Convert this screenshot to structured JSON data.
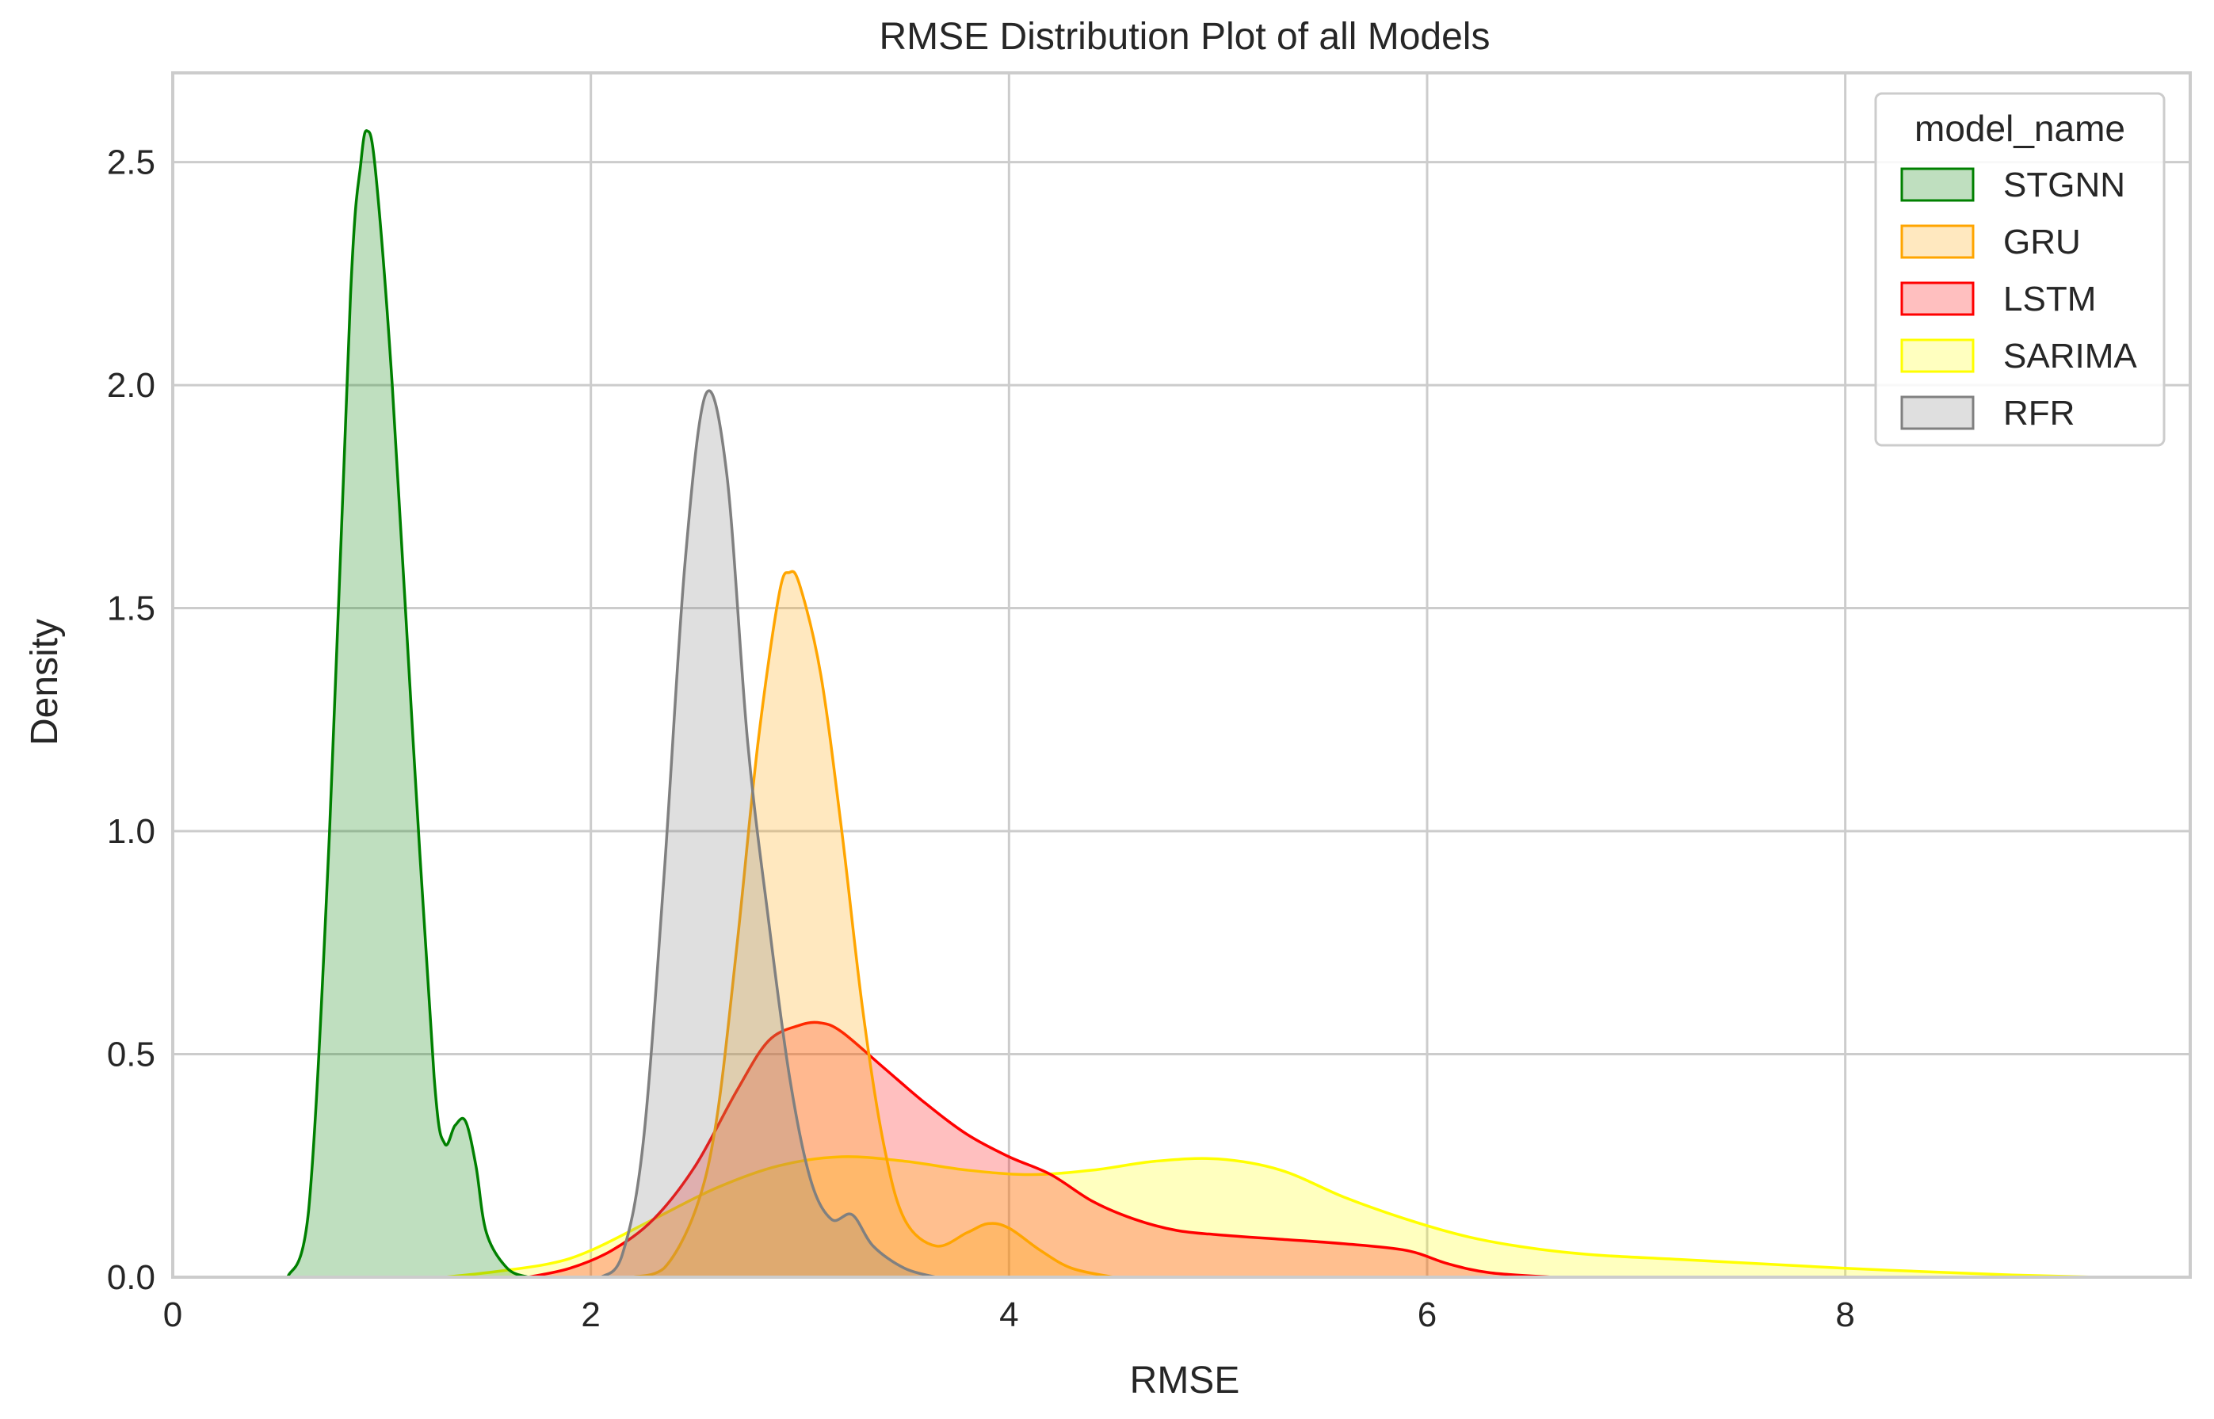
{
  "chart_data": {
    "type": "area",
    "title": "RMSE Distribution Plot of all Models",
    "xlabel": "RMSE",
    "ylabel": "Density",
    "xlim": [
      0,
      9.65
    ],
    "ylim": [
      0,
      2.7
    ],
    "xticks": [
      0,
      2,
      4,
      6,
      8
    ],
    "xtick_labels": [
      "0",
      "2",
      "4",
      "6",
      "8"
    ],
    "yticks": [
      0.0,
      0.5,
      1.0,
      1.5,
      2.0,
      2.5
    ],
    "ytick_labels": [
      "0.0",
      "0.5",
      "1.0",
      "1.5",
      "2.0",
      "2.5"
    ],
    "grid": true,
    "legend": {
      "title": "model_name",
      "placement": "top-right"
    },
    "series": [
      {
        "name": "SARIMA",
        "color": "#ffff00",
        "points": [
          [
            1.3,
            0
          ],
          [
            1.5,
            0.01
          ],
          [
            1.8,
            0.03
          ],
          [
            2.0,
            0.06
          ],
          [
            2.3,
            0.13
          ],
          [
            2.6,
            0.2
          ],
          [
            2.9,
            0.25
          ],
          [
            3.2,
            0.27
          ],
          [
            3.5,
            0.26
          ],
          [
            3.8,
            0.24
          ],
          [
            4.1,
            0.23
          ],
          [
            4.4,
            0.24
          ],
          [
            4.7,
            0.26
          ],
          [
            5.0,
            0.265
          ],
          [
            5.3,
            0.24
          ],
          [
            5.6,
            0.18
          ],
          [
            5.9,
            0.13
          ],
          [
            6.2,
            0.09
          ],
          [
            6.5,
            0.065
          ],
          [
            6.8,
            0.05
          ],
          [
            7.2,
            0.04
          ],
          [
            7.6,
            0.03
          ],
          [
            8.0,
            0.02
          ],
          [
            8.4,
            0.012
          ],
          [
            8.8,
            0.005
          ],
          [
            9.2,
            0.0
          ]
        ]
      },
      {
        "name": "LSTM",
        "color": "#ff0000",
        "points": [
          [
            1.7,
            0
          ],
          [
            1.9,
            0.02
          ],
          [
            2.1,
            0.06
          ],
          [
            2.3,
            0.13
          ],
          [
            2.5,
            0.25
          ],
          [
            2.7,
            0.42
          ],
          [
            2.85,
            0.53
          ],
          [
            3.0,
            0.565
          ],
          [
            3.1,
            0.57
          ],
          [
            3.2,
            0.55
          ],
          [
            3.4,
            0.47
          ],
          [
            3.6,
            0.39
          ],
          [
            3.8,
            0.32
          ],
          [
            4.0,
            0.27
          ],
          [
            4.2,
            0.23
          ],
          [
            4.4,
            0.17
          ],
          [
            4.6,
            0.13
          ],
          [
            4.8,
            0.105
          ],
          [
            5.0,
            0.095
          ],
          [
            5.3,
            0.085
          ],
          [
            5.6,
            0.075
          ],
          [
            5.9,
            0.06
          ],
          [
            6.1,
            0.03
          ],
          [
            6.3,
            0.01
          ],
          [
            6.6,
            0.0
          ]
        ]
      },
      {
        "name": "GRU",
        "color": "#ffa500",
        "points": [
          [
            2.2,
            0
          ],
          [
            2.35,
            0.02
          ],
          [
            2.5,
            0.15
          ],
          [
            2.6,
            0.35
          ],
          [
            2.7,
            0.75
          ],
          [
            2.8,
            1.2
          ],
          [
            2.9,
            1.53
          ],
          [
            2.95,
            1.58
          ],
          [
            3.0,
            1.55
          ],
          [
            3.1,
            1.35
          ],
          [
            3.2,
            1.0
          ],
          [
            3.3,
            0.6
          ],
          [
            3.4,
            0.3
          ],
          [
            3.5,
            0.13
          ],
          [
            3.65,
            0.07
          ],
          [
            3.8,
            0.1
          ],
          [
            3.9,
            0.12
          ],
          [
            4.0,
            0.11
          ],
          [
            4.15,
            0.06
          ],
          [
            4.3,
            0.02
          ],
          [
            4.5,
            0.0
          ]
        ]
      },
      {
        "name": "RFR",
        "color": "#808080",
        "points": [
          [
            2.05,
            0
          ],
          [
            2.15,
            0.05
          ],
          [
            2.25,
            0.3
          ],
          [
            2.35,
            0.9
          ],
          [
            2.45,
            1.6
          ],
          [
            2.55,
            1.98
          ],
          [
            2.65,
            1.8
          ],
          [
            2.75,
            1.2
          ],
          [
            2.85,
            0.8
          ],
          [
            2.95,
            0.45
          ],
          [
            3.05,
            0.22
          ],
          [
            3.15,
            0.13
          ],
          [
            3.25,
            0.14
          ],
          [
            3.35,
            0.07
          ],
          [
            3.5,
            0.02
          ],
          [
            3.65,
            0.0
          ]
        ]
      },
      {
        "name": "STGNN",
        "color": "#008000",
        "points": [
          [
            0.55,
            0
          ],
          [
            0.65,
            0.15
          ],
          [
            0.75,
            1.0
          ],
          [
            0.85,
            2.2
          ],
          [
            0.9,
            2.5
          ],
          [
            0.93,
            2.57
          ],
          [
            0.97,
            2.48
          ],
          [
            1.05,
            2.0
          ],
          [
            1.15,
            1.2
          ],
          [
            1.25,
            0.45
          ],
          [
            1.3,
            0.3
          ],
          [
            1.35,
            0.34
          ],
          [
            1.4,
            0.35
          ],
          [
            1.45,
            0.25
          ],
          [
            1.5,
            0.1
          ],
          [
            1.6,
            0.02
          ],
          [
            1.7,
            0.0
          ]
        ]
      }
    ]
  }
}
